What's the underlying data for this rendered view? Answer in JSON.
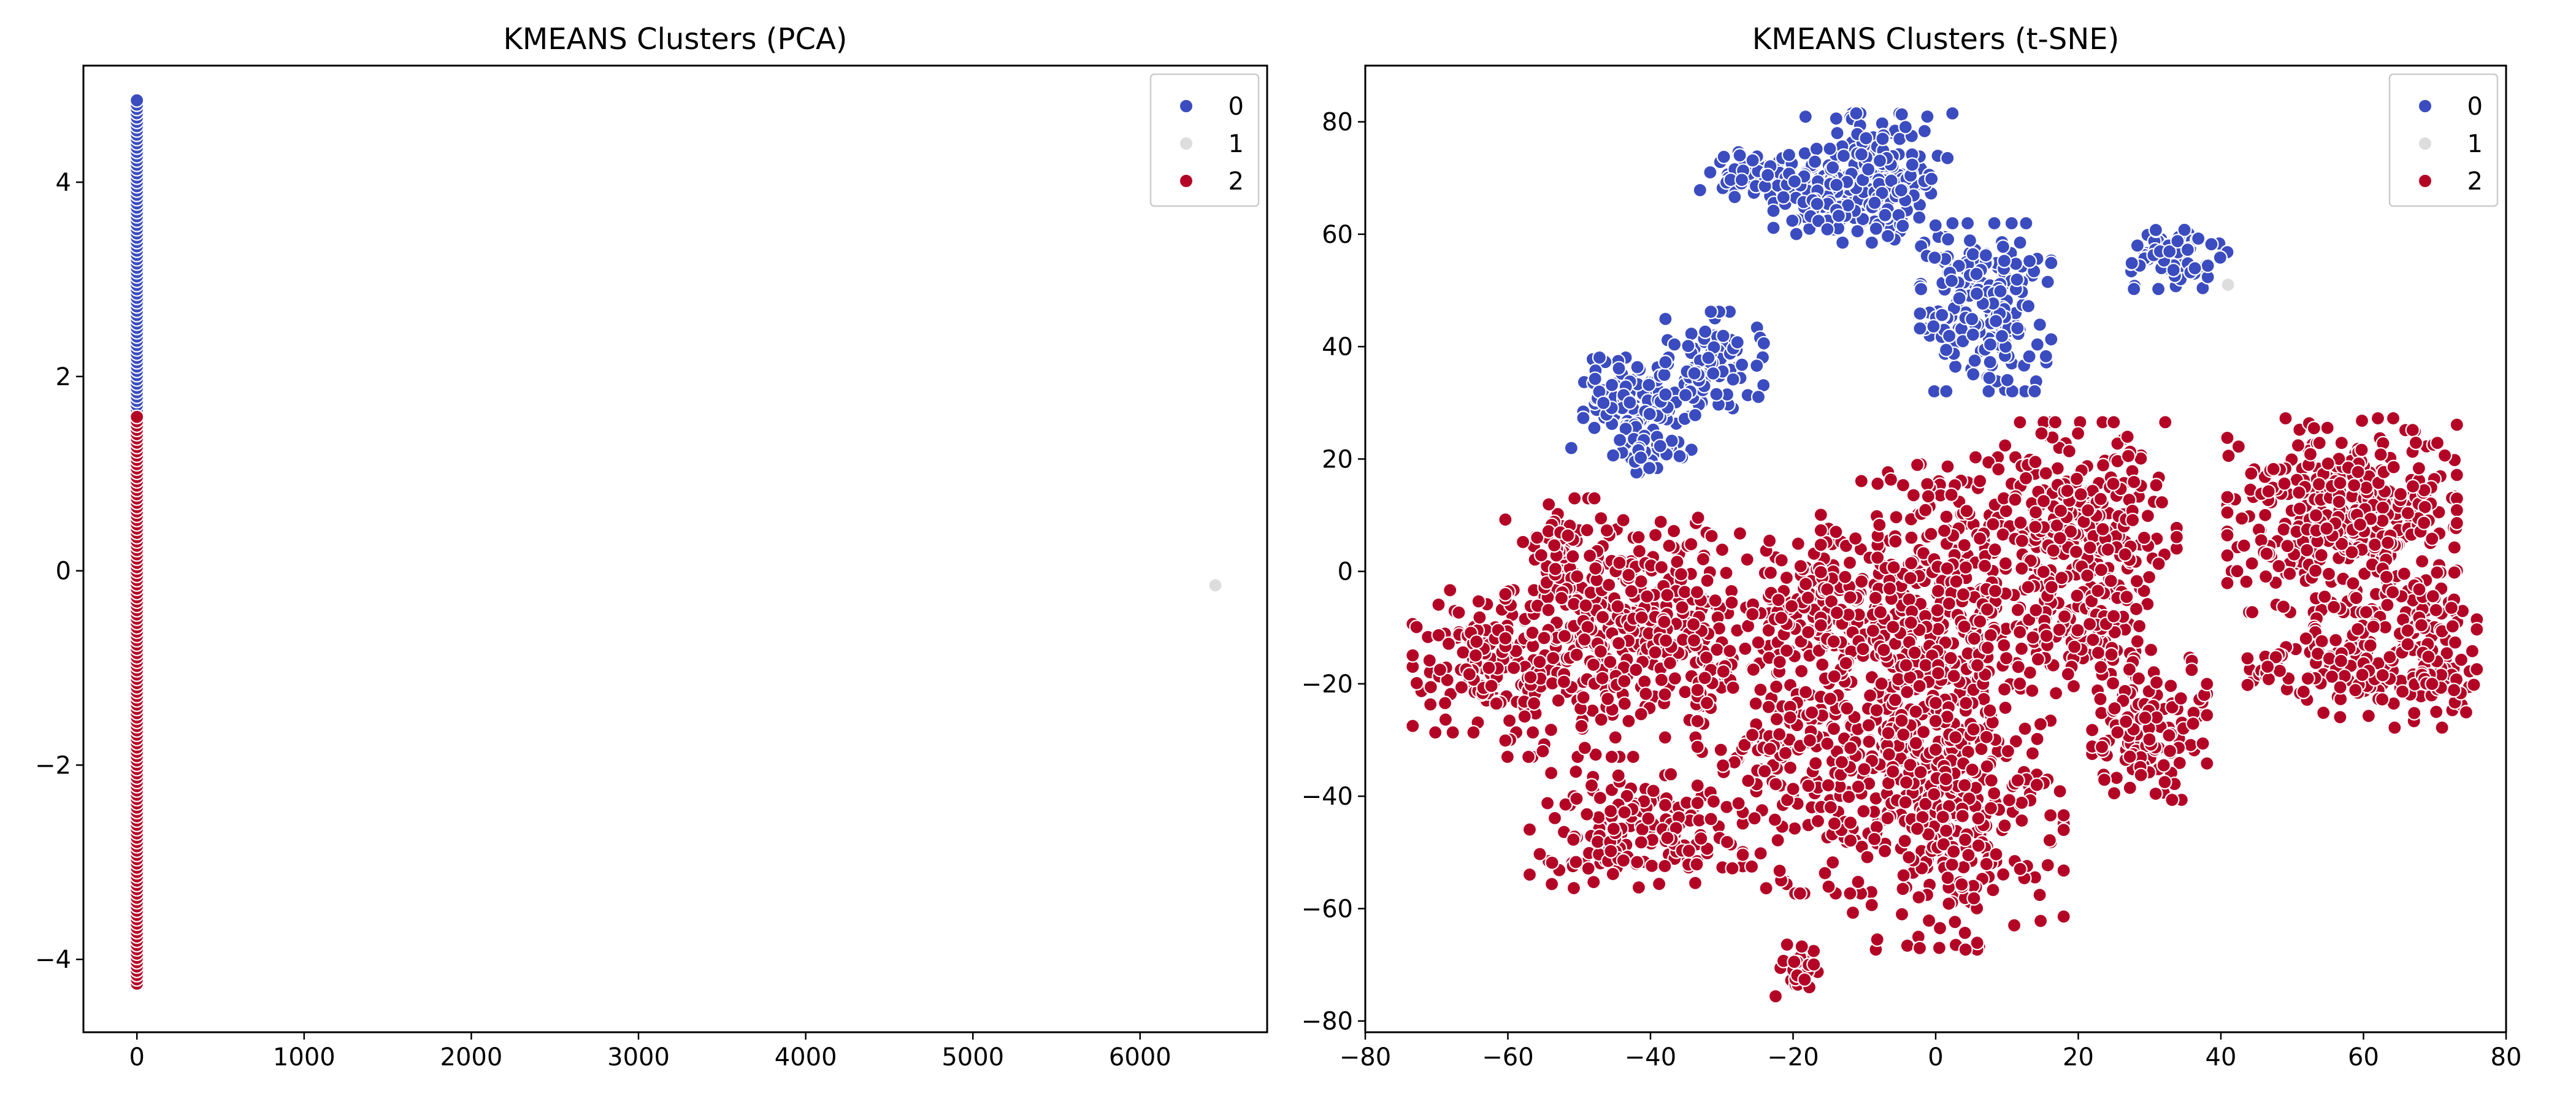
{
  "chart_data": [
    {
      "type": "scatter",
      "title": "KMEANS Clusters (PCA)",
      "xlabel": "",
      "ylabel": "",
      "xlim": [
        -320,
        6760
      ],
      "ylim": [
        -4.75,
        5.2
      ],
      "xticks": [
        0,
        1000,
        2000,
        3000,
        4000,
        5000,
        6000
      ],
      "yticks": [
        -4,
        -2,
        0,
        2,
        4
      ],
      "grid": false,
      "legend_position": "top-right",
      "legend": [
        {
          "label": "0",
          "color": "#3b4cc0"
        },
        {
          "label": "1",
          "color": "#dddddd"
        },
        {
          "label": "2",
          "color": "#b40426"
        }
      ],
      "series": [
        {
          "cluster": "0",
          "color": "#3b4cc0",
          "x": [
            0
          ],
          "y_range": [
            0.6,
            4.85
          ]
        },
        {
          "cluster": "1",
          "color": "#dddddd",
          "points": [
            [
              6450,
              -0.15
            ]
          ]
        },
        {
          "cluster": "2",
          "color": "#b40426",
          "x": [
            0
          ],
          "y_range": [
            -4.25,
            1.6
          ]
        }
      ]
    },
    {
      "type": "scatter",
      "title": "KMEANS Clusters (t-SNE)",
      "xlabel": "",
      "ylabel": "",
      "xlim": [
        -80,
        80
      ],
      "ylim": [
        -82,
        90
      ],
      "xticks": [
        -80,
        -60,
        -40,
        -20,
        0,
        20,
        40,
        60,
        80
      ],
      "yticks": [
        -80,
        -60,
        -40,
        -20,
        0,
        20,
        40,
        60,
        80
      ],
      "grid": false,
      "legend_position": "top-right",
      "legend": [
        {
          "label": "0",
          "color": "#3b4cc0"
        },
        {
          "label": "1",
          "color": "#dddddd"
        },
        {
          "label": "2",
          "color": "#b40426"
        }
      ],
      "series": [
        {
          "cluster": "0",
          "color": "#3b4cc0",
          "blobs": [
            {
              "cx": -25,
              "cy": 70,
              "rx": 7,
              "ry": 4,
              "n": 60
            },
            {
              "cx": -8,
              "cy": 70,
              "rx": 9,
              "ry": 10,
              "n": 220
            },
            {
              "cx": -17,
              "cy": 66,
              "rx": 5,
              "ry": 6,
              "n": 50
            },
            {
              "cx": 7,
              "cy": 47,
              "rx": 8,
              "ry": 13,
              "n": 200
            },
            {
              "cx": 34,
              "cy": 56,
              "rx": 6,
              "ry": 5,
              "n": 70
            },
            {
              "cx": -42,
              "cy": 30,
              "rx": 8,
              "ry": 7,
              "n": 130
            },
            {
              "cx": -31,
              "cy": 37,
              "rx": 6,
              "ry": 8,
              "n": 80
            },
            {
              "cx": -40,
              "cy": 21,
              "rx": 5,
              "ry": 3,
              "n": 30
            }
          ]
        },
        {
          "cluster": "1",
          "color": "#dddddd",
          "points": [
            [
              41,
              51
            ]
          ]
        },
        {
          "cluster": "2",
          "color": "#b40426",
          "blobs": [
            {
              "cx": -63,
              "cy": -16,
              "rx": 9,
              "ry": 11,
              "n": 140
            },
            {
              "cx": -50,
              "cy": -10,
              "rx": 9,
              "ry": 20,
              "n": 200
            },
            {
              "cx": -53,
              "cy": 5,
              "rx": 3,
              "ry": 3,
              "n": 15
            },
            {
              "cx": -36,
              "cy": -10,
              "rx": 11,
              "ry": 17,
              "n": 220
            },
            {
              "cx": -42,
              "cy": -46,
              "rx": 13,
              "ry": 9,
              "n": 160
            },
            {
              "cx": -15,
              "cy": -32,
              "rx": 16,
              "ry": 22,
              "n": 320
            },
            {
              "cx": -16,
              "cy": -6,
              "rx": 9,
              "ry": 10,
              "n": 110
            },
            {
              "cx": 0,
              "cy": -5,
              "rx": 14,
              "ry": 22,
              "n": 380
            },
            {
              "cx": 3,
              "cy": -42,
              "rx": 13,
              "ry": 22,
              "n": 320
            },
            {
              "cx": 20,
              "cy": 7,
              "rx": 12,
              "ry": 17,
              "n": 300
            },
            {
              "cx": 21,
              "cy": -12,
              "rx": 8,
              "ry": 8,
              "n": 80
            },
            {
              "cx": 30,
              "cy": -28,
              "rx": 7,
              "ry": 11,
              "n": 120
            },
            {
              "cx": -19,
              "cy": -71,
              "rx": 3,
              "ry": 4,
              "n": 25
            },
            {
              "cx": 57,
              "cy": 10,
              "rx": 14,
              "ry": 15,
              "n": 400
            },
            {
              "cx": 69,
              "cy": -14,
              "rx": 6,
              "ry": 12,
              "n": 120
            },
            {
              "cx": 57,
              "cy": -16,
              "rx": 8,
              "ry": 10,
              "n": 100
            },
            {
              "cx": 47,
              "cy": -17,
              "rx": 4,
              "ry": 4,
              "n": 20
            }
          ]
        }
      ]
    }
  ]
}
